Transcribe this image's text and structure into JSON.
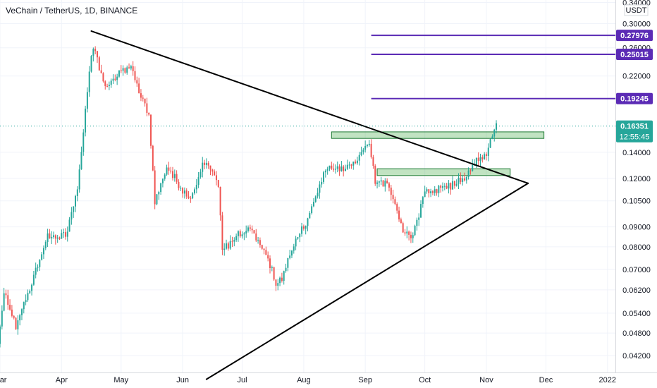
{
  "chart_data": {
    "type": "candlestick",
    "title": "VeChain / TetherUS, 1D, BINANCE",
    "currency": "USDT",
    "y_scale": "log",
    "ylim": [
      0.038,
      0.345
    ],
    "x_start": "2021-03-01",
    "x_end": "2022-01-05",
    "y_ticks": [
      {
        "value": 0.34,
        "label": "0.34000"
      },
      {
        "value": 0.3,
        "label": "0.30000"
      },
      {
        "value": 0.26,
        "label": "0.26000"
      },
      {
        "value": 0.22,
        "label": "0.22000"
      },
      {
        "value": 0.14,
        "label": "0.14000"
      },
      {
        "value": 0.12,
        "label": "0.12000"
      },
      {
        "value": 0.105,
        "label": "0.10500"
      },
      {
        "value": 0.09,
        "label": "0.09000"
      },
      {
        "value": 0.08,
        "label": "0.08000"
      },
      {
        "value": 0.07,
        "label": "0.07000"
      },
      {
        "value": 0.062,
        "label": "0.06200"
      },
      {
        "value": 0.054,
        "label": "0.05400"
      },
      {
        "value": 0.048,
        "label": "0.04800"
      },
      {
        "value": 0.042,
        "label": "0.04200"
      }
    ],
    "x_ticks": [
      {
        "date": "2021-03-01",
        "label": "Mar"
      },
      {
        "date": "2021-04-01",
        "label": "Apr"
      },
      {
        "date": "2021-05-01",
        "label": "May"
      },
      {
        "date": "2021-06-01",
        "label": "Jun"
      },
      {
        "date": "2021-07-01",
        "label": "Jul"
      },
      {
        "date": "2021-08-01",
        "label": "Aug"
      },
      {
        "date": "2021-09-01",
        "label": "Sep"
      },
      {
        "date": "2021-10-01",
        "label": "Oct"
      },
      {
        "date": "2021-11-01",
        "label": "Nov"
      },
      {
        "date": "2021-12-01",
        "label": "Dec"
      },
      {
        "date": "2022-01-01",
        "label": "2022"
      }
    ],
    "last_price": {
      "value": 0.16351,
      "label": "0.16351",
      "countdown": "12:55:45"
    },
    "price_levels": [
      {
        "value": 0.27976,
        "label": "0.27976",
        "from": "2021-09-04"
      },
      {
        "value": 0.25015,
        "label": "0.25015",
        "from": "2021-09-04"
      },
      {
        "value": 0.19245,
        "label": "0.19245",
        "from": "2021-09-04"
      }
    ],
    "zones": [
      {
        "from": "2021-08-15",
        "to": "2021-11-30",
        "low": 0.152,
        "high": 0.158
      },
      {
        "from": "2021-09-07",
        "to": "2021-11-13",
        "low": 0.122,
        "high": 0.127
      }
    ],
    "trendlines": [
      {
        "from": {
          "date": "2021-04-16",
          "value": 0.287
        },
        "to": {
          "date": "2021-11-22",
          "value": 0.1165
        }
      },
      {
        "from": {
          "date": "2021-06-13",
          "value": 0.0365
        },
        "to": {
          "date": "2021-11-22",
          "value": 0.1165
        }
      }
    ],
    "anchors": [
      {
        "date": "2021-03-01",
        "value": 0.045
      },
      {
        "date": "2021-03-04",
        "value": 0.062
      },
      {
        "date": "2021-03-10",
        "value": 0.05
      },
      {
        "date": "2021-03-18",
        "value": 0.064
      },
      {
        "date": "2021-03-26",
        "value": 0.086
      },
      {
        "date": "2021-04-04",
        "value": 0.086
      },
      {
        "date": "2021-04-10",
        "value": 0.11
      },
      {
        "date": "2021-04-16",
        "value": 0.225
      },
      {
        "date": "2021-04-18",
        "value": 0.264
      },
      {
        "date": "2021-04-24",
        "value": 0.205
      },
      {
        "date": "2021-05-01",
        "value": 0.225
      },
      {
        "date": "2021-05-07",
        "value": 0.235
      },
      {
        "date": "2021-05-12",
        "value": 0.195
      },
      {
        "date": "2021-05-16",
        "value": 0.175
      },
      {
        "date": "2021-05-19",
        "value": 0.105
      },
      {
        "date": "2021-05-25",
        "value": 0.13
      },
      {
        "date": "2021-06-05",
        "value": 0.105
      },
      {
        "date": "2021-06-13",
        "value": 0.133
      },
      {
        "date": "2021-06-20",
        "value": 0.115
      },
      {
        "date": "2021-06-22",
        "value": 0.078
      },
      {
        "date": "2021-06-30",
        "value": 0.086
      },
      {
        "date": "2021-07-06",
        "value": 0.09
      },
      {
        "date": "2021-07-14",
        "value": 0.077
      },
      {
        "date": "2021-07-20",
        "value": 0.063
      },
      {
        "date": "2021-07-26",
        "value": 0.076
      },
      {
        "date": "2021-08-06",
        "value": 0.1
      },
      {
        "date": "2021-08-14",
        "value": 0.13
      },
      {
        "date": "2021-08-20",
        "value": 0.125
      },
      {
        "date": "2021-08-28",
        "value": 0.13
      },
      {
        "date": "2021-09-04",
        "value": 0.15
      },
      {
        "date": "2021-09-07",
        "value": 0.117
      },
      {
        "date": "2021-09-14",
        "value": 0.115
      },
      {
        "date": "2021-09-20",
        "value": 0.09
      },
      {
        "date": "2021-09-26",
        "value": 0.085
      },
      {
        "date": "2021-10-02",
        "value": 0.11
      },
      {
        "date": "2021-10-12",
        "value": 0.113
      },
      {
        "date": "2021-10-22",
        "value": 0.12
      },
      {
        "date": "2021-10-29",
        "value": 0.135
      },
      {
        "date": "2021-11-02",
        "value": 0.14
      },
      {
        "date": "2021-11-06",
        "value": 0.163
      }
    ]
  }
}
